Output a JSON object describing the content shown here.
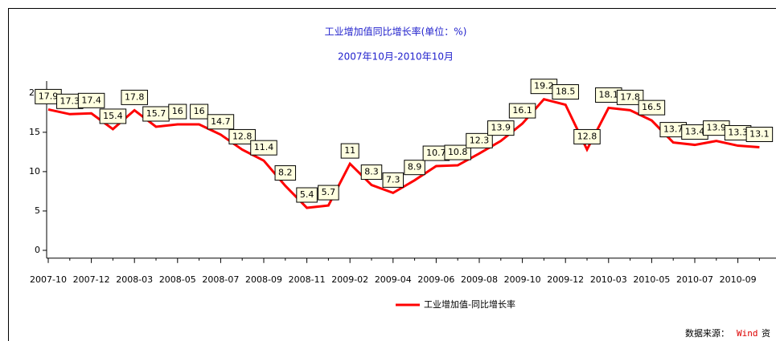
{
  "chart_data": {
    "type": "line",
    "title": "工业增加值同比增长率(单位：%)",
    "subtitle": "2007年10月-2010年10月",
    "categories": [
      "2007-10",
      null,
      "2007-12",
      null,
      "2008-03",
      null,
      "2008-05",
      null,
      "2008-07",
      null,
      "2008-09",
      null,
      "2008-11",
      null,
      "2009-02",
      null,
      "2009-04",
      null,
      "2009-06",
      null,
      "2009-08",
      null,
      "2009-10",
      null,
      "2009-12",
      null,
      "2010-03",
      null,
      "2010-05",
      null,
      "2010-07",
      null,
      "2010-09",
      null
    ],
    "series": [
      {
        "name": "工业增加值-同比增长率",
        "color": "#ff0000",
        "values": [
          17.9,
          17.3,
          17.4,
          15.4,
          17.8,
          15.7,
          16,
          16,
          14.7,
          12.8,
          11.4,
          8.2,
          5.4,
          5.7,
          11,
          8.3,
          7.3,
          8.9,
          10.7,
          10.8,
          12.3,
          13.9,
          16.1,
          19.2,
          18.5,
          12.8,
          18.1,
          17.8,
          16.5,
          13.7,
          13.4,
          13.9,
          13.3,
          13.1
        ]
      }
    ],
    "ylim": [
      -1,
      21
    ],
    "yticks": [
      0,
      5,
      10,
      15,
      20
    ],
    "legend": "bottom",
    "source_label": "数据来源：",
    "source_name": "Wind",
    "source_suffix": "资"
  }
}
